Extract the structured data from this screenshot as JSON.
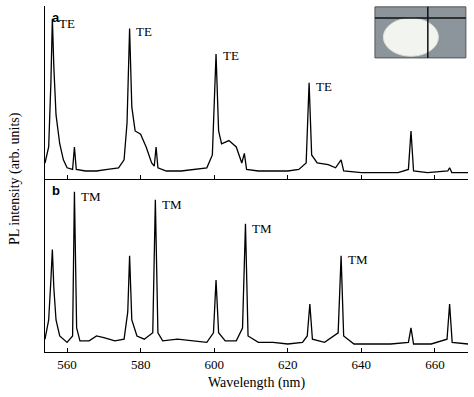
{
  "chart_data": [
    {
      "type": "line",
      "title": "a",
      "color": "#000000",
      "grid": false,
      "tick_labels": false,
      "ylabel": "PL intensity (arb. units)",
      "x": [
        554,
        555,
        555.6,
        556,
        556.4,
        557,
        558,
        559,
        560,
        561.5,
        562,
        562.5,
        565,
        568,
        571,
        574,
        575.5,
        576.3,
        577,
        577.6,
        578.5,
        580,
        581.5,
        583,
        583.7,
        584.2,
        584.7,
        587,
        591,
        595,
        598,
        599.5,
        600.5,
        601.2,
        602,
        604,
        606,
        607.5,
        608.2,
        608.8,
        612,
        616,
        620,
        623,
        625,
        625.8,
        626.5,
        628,
        631,
        633,
        634.5,
        635.2,
        640,
        645,
        650,
        652.8,
        653.5,
        654.2,
        658,
        663.5,
        664,
        664.6,
        669
      ],
      "values": [
        0.1,
        0.2,
        0.6,
        1.0,
        0.7,
        0.4,
        0.22,
        0.12,
        0.07,
        0.06,
        0.2,
        0.06,
        0.05,
        0.05,
        0.06,
        0.07,
        0.12,
        0.35,
        0.94,
        0.45,
        0.3,
        0.28,
        0.2,
        0.1,
        0.08,
        0.2,
        0.07,
        0.05,
        0.05,
        0.06,
        0.07,
        0.15,
        0.78,
        0.3,
        0.22,
        0.24,
        0.2,
        0.1,
        0.16,
        0.06,
        0.05,
        0.05,
        0.05,
        0.06,
        0.1,
        0.6,
        0.15,
        0.1,
        0.09,
        0.07,
        0.12,
        0.05,
        0.04,
        0.04,
        0.04,
        0.06,
        0.3,
        0.05,
        0.04,
        0.05,
        0.07,
        0.04,
        0.04
      ],
      "xlim": [
        554,
        669
      ],
      "xticks": [
        560,
        580,
        600,
        620,
        640,
        660
      ],
      "ylim": [
        0,
        1.08
      ],
      "yticks": [],
      "annotations": [
        {
          "text": "TE",
          "x": 557.3,
          "y": 0.97
        },
        {
          "text": "TE",
          "x": 578.3,
          "y": 0.92
        },
        {
          "text": "TE",
          "x": 601.8,
          "y": 0.77
        },
        {
          "text": "TE",
          "x": 627.2,
          "y": 0.58
        }
      ]
    },
    {
      "type": "line",
      "title": "b",
      "color": "#000000",
      "grid": false,
      "tick_labels": "x",
      "xlabel": "Wavelength (nm)",
      "x": [
        554,
        555,
        555.6,
        556,
        556.4,
        557,
        558,
        560,
        561.5,
        562,
        562.6,
        563.5,
        566,
        568,
        570,
        573,
        575.5,
        576.5,
        577,
        577.6,
        579,
        581,
        583.3,
        584,
        584.7,
        586,
        590,
        594,
        598,
        599.8,
        600.5,
        601.2,
        603,
        606,
        607.7,
        608.5,
        609.2,
        612,
        616,
        620,
        624,
        625.3,
        626,
        626.7,
        630,
        633.7,
        634.5,
        635.2,
        638,
        643,
        648,
        652.8,
        653.5,
        654.2,
        659,
        663.3,
        664,
        664.7,
        669
      ],
      "values": [
        0.08,
        0.2,
        0.45,
        0.64,
        0.4,
        0.2,
        0.1,
        0.06,
        0.1,
        1.0,
        0.15,
        0.07,
        0.07,
        0.1,
        0.09,
        0.07,
        0.08,
        0.25,
        0.6,
        0.2,
        0.1,
        0.08,
        0.12,
        0.95,
        0.12,
        0.07,
        0.08,
        0.07,
        0.06,
        0.12,
        0.45,
        0.12,
        0.07,
        0.07,
        0.15,
        0.8,
        0.1,
        0.06,
        0.06,
        0.05,
        0.06,
        0.1,
        0.3,
        0.08,
        0.06,
        0.12,
        0.6,
        0.1,
        0.05,
        0.05,
        0.05,
        0.06,
        0.15,
        0.05,
        0.05,
        0.08,
        0.3,
        0.06,
        0.05
      ],
      "xlim": [
        554,
        669
      ],
      "xticks": [
        560,
        580,
        600,
        620,
        640,
        660
      ],
      "ylim": [
        0,
        1.08
      ],
      "yticks": [],
      "annotations": [
        {
          "text": "TM",
          "x": 563.2,
          "y": 0.97
        },
        {
          "text": "TM",
          "x": 585.2,
          "y": 0.92
        },
        {
          "text": "TM",
          "x": 609.7,
          "y": 0.77
        },
        {
          "text": "TM",
          "x": 635.7,
          "y": 0.58
        }
      ]
    }
  ]
}
